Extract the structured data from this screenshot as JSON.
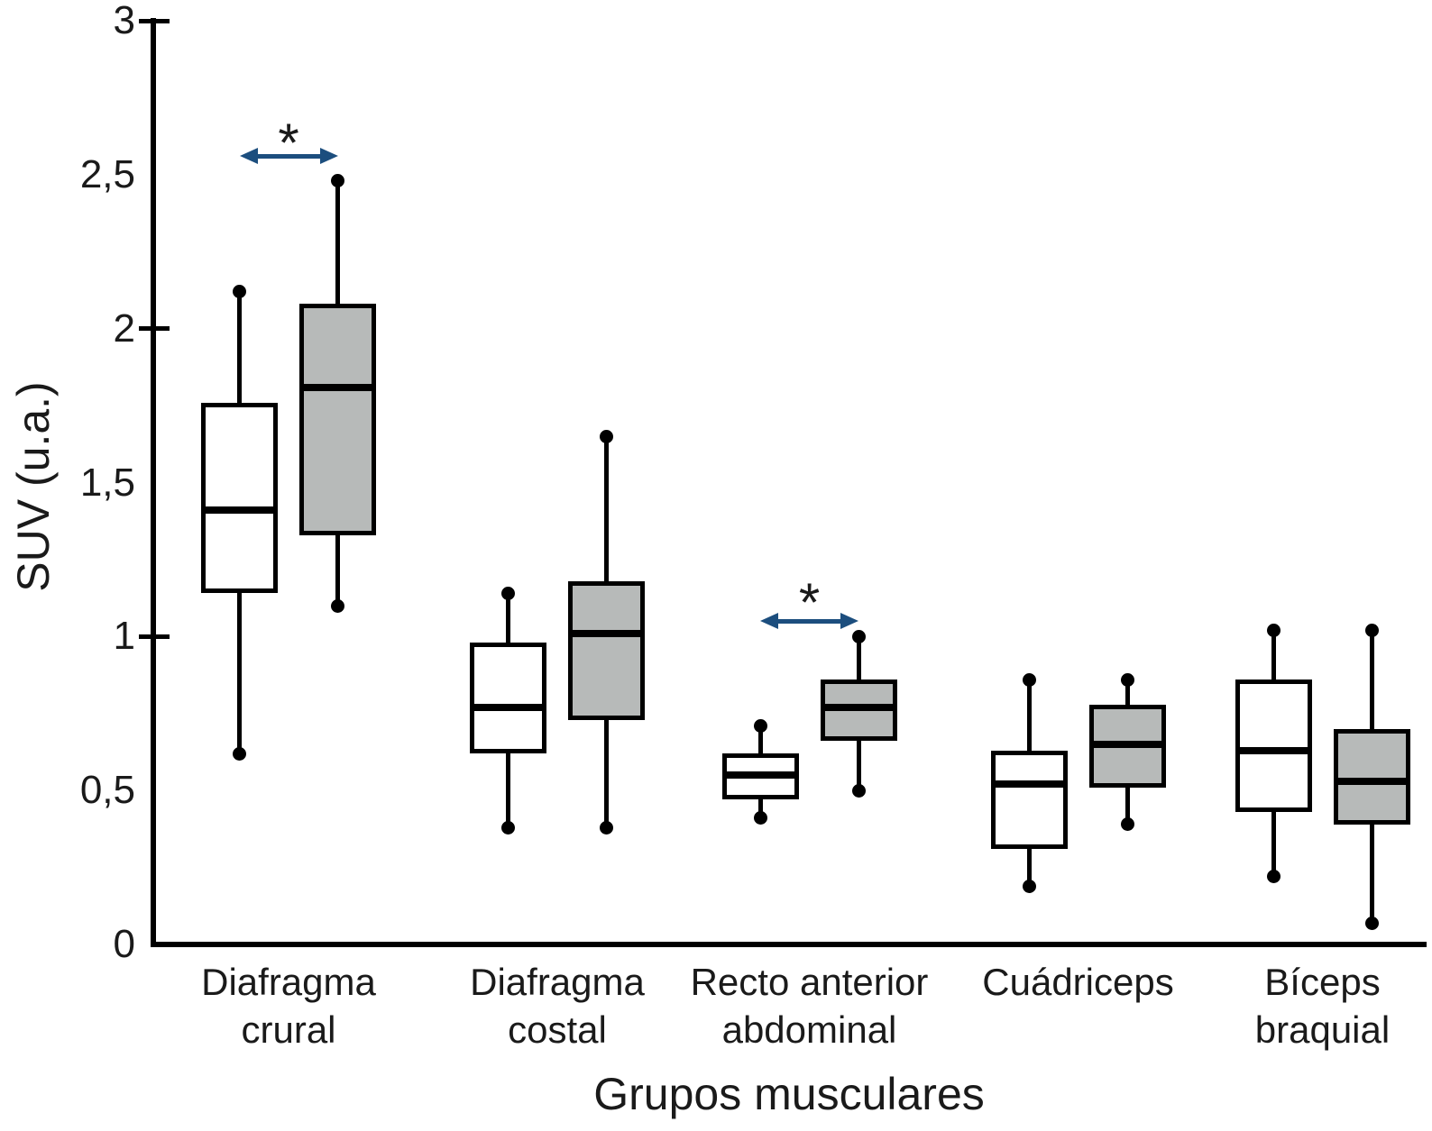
{
  "chart_data": {
    "type": "boxplot",
    "title": "",
    "y_axis": {
      "title": "SUV (u.a.)",
      "range": [
        0,
        3
      ],
      "ticks": [
        {
          "v": 3,
          "label": "3"
        },
        {
          "v": 2.5,
          "label": "2,5"
        },
        {
          "v": 2,
          "label": "2"
        },
        {
          "v": 1.5,
          "label": "1,5"
        },
        {
          "v": 1,
          "label": "1"
        },
        {
          "v": 0.5,
          "label": "0,5"
        },
        {
          "v": 0,
          "label": "0"
        }
      ]
    },
    "x_axis": {
      "title": "Grupos musculares",
      "categories": [
        {
          "label": "Diafragma crural",
          "lines": [
            "Diafragma",
            "crural"
          ]
        },
        {
          "label": "Diafragma costal",
          "lines": [
            "Diafragma",
            "costal"
          ]
        },
        {
          "label": "Recto anterior abdominal",
          "lines": [
            "Recto anterior",
            "abdominal"
          ]
        },
        {
          "label": "Cuádriceps",
          "lines": [
            "Cuádriceps"
          ]
        },
        {
          "label": "Bíceps braquial",
          "lines": [
            "Bíceps",
            "braquial"
          ]
        }
      ]
    },
    "series": [
      {
        "name": "white-box",
        "fill": "#ffffff",
        "boxes": [
          {
            "min": 0.62,
            "q1": 1.14,
            "median": 1.41,
            "q3": 1.76,
            "max": 2.12
          },
          {
            "min": 0.38,
            "q1": 0.62,
            "median": 0.77,
            "q3": 0.98,
            "max": 1.14
          },
          {
            "min": 0.41,
            "q1": 0.47,
            "median": 0.55,
            "q3": 0.62,
            "max": 0.71
          },
          {
            "min": 0.19,
            "q1": 0.31,
            "median": 0.52,
            "q3": 0.63,
            "max": 0.86
          },
          {
            "min": 0.22,
            "q1": 0.43,
            "median": 0.63,
            "q3": 0.86,
            "max": 1.02
          }
        ]
      },
      {
        "name": "gray-box",
        "fill": "#b7bab9",
        "boxes": [
          {
            "min": 1.1,
            "q1": 1.33,
            "median": 1.81,
            "q3": 2.08,
            "max": 2.48
          },
          {
            "min": 0.38,
            "q1": 0.73,
            "median": 1.01,
            "q3": 1.18,
            "max": 1.65
          },
          {
            "min": 0.5,
            "q1": 0.66,
            "median": 0.77,
            "q3": 0.86,
            "max": 1.0
          },
          {
            "min": 0.39,
            "q1": 0.51,
            "median": 0.65,
            "q3": 0.78,
            "max": 0.86
          },
          {
            "min": 0.07,
            "q1": 0.39,
            "median": 0.53,
            "q3": 0.7,
            "max": 1.02
          }
        ]
      }
    ],
    "markers": [
      {
        "category_index": 0,
        "symbol": "*",
        "arrow_v": 2.56,
        "star_v": 2.63
      },
      {
        "category_index": 2,
        "symbol": "*",
        "arrow_v": 1.05,
        "star_v": 1.14
      }
    ],
    "colors": {
      "arrow": "#1c4e7e",
      "line": "#000000",
      "text": "#1a1a1a"
    }
  }
}
